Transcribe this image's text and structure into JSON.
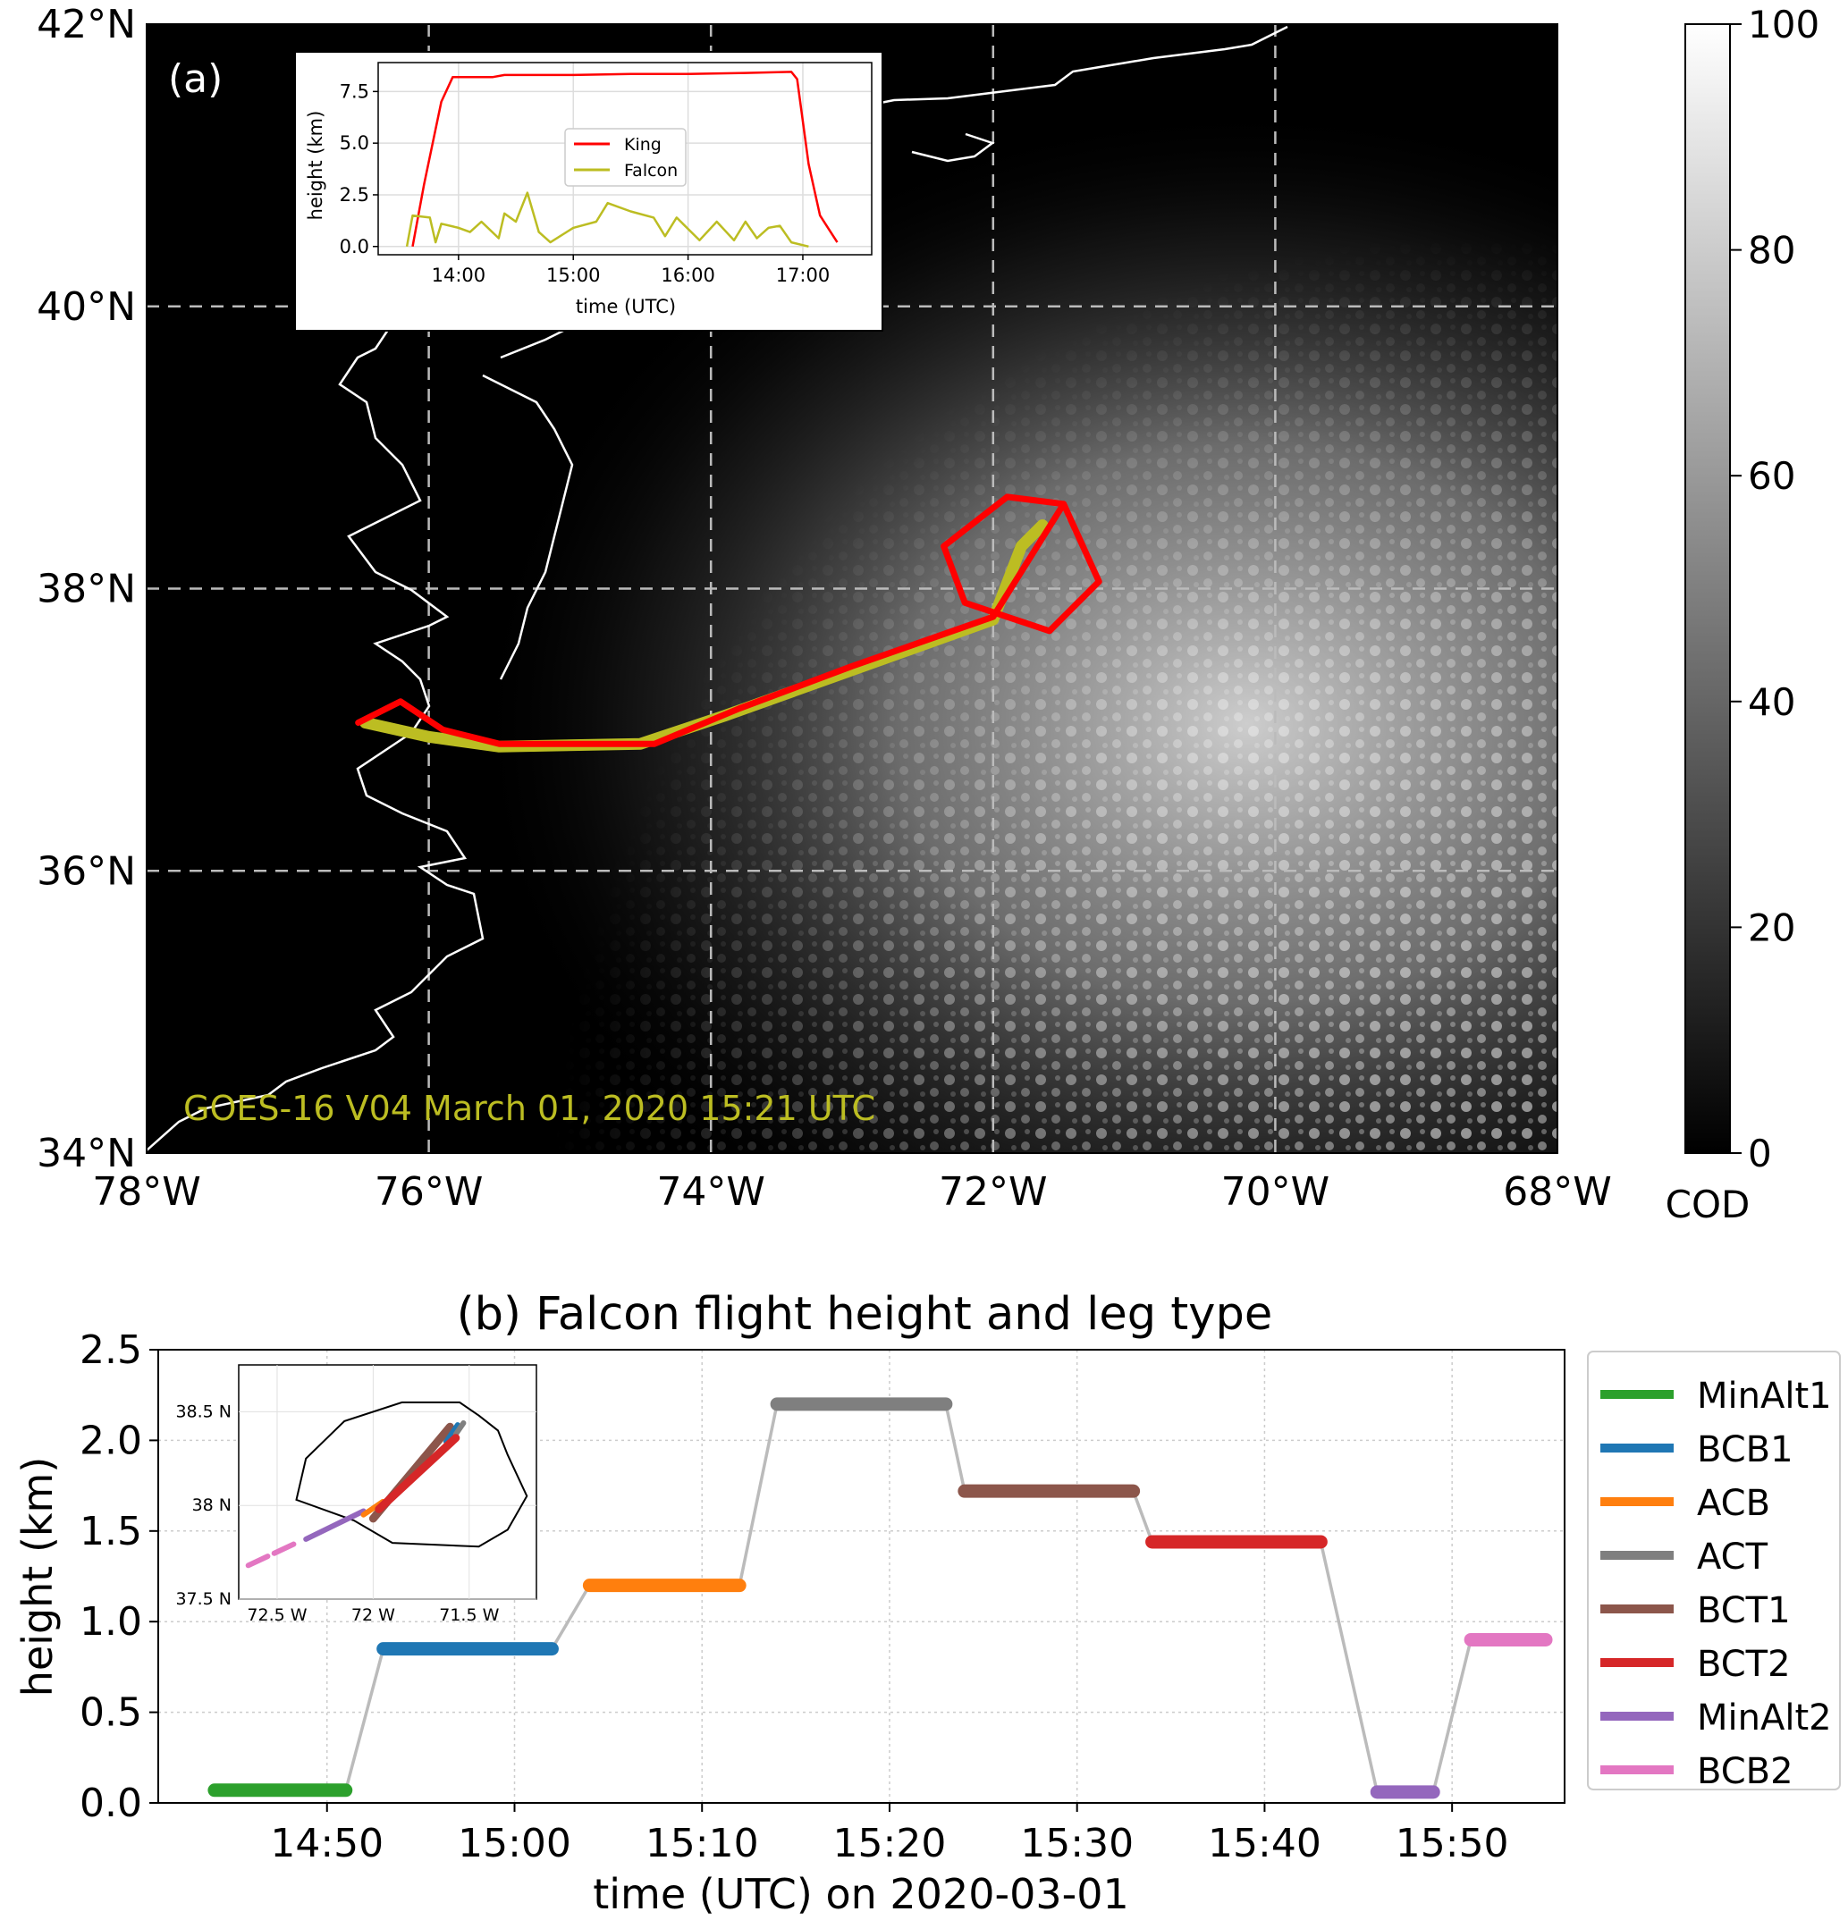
{
  "chart_data": [
    {
      "panel": "(a)",
      "type": "map",
      "xlim": [
        -78,
        -68
      ],
      "ylim": [
        34,
        42
      ],
      "x_ticks": [
        "78°W",
        "76°W",
        "74°W",
        "72°W",
        "70°W",
        "68°W"
      ],
      "y_ticks": [
        "34°N",
        "36°N",
        "38°N",
        "40°N",
        "42°N"
      ],
      "grid": "dashed",
      "annotation": "GOES-16 V04  March 01, 2020 15:21 UTC",
      "colorbar": {
        "label": "COD",
        "range": [
          0,
          100
        ],
        "ticks": [
          "0",
          "20",
          "40",
          "60",
          "80",
          "100"
        ]
      },
      "colors": {
        "King": "#ff0000",
        "Falcon": "#bcbd22",
        "coast": "#ffffff"
      },
      "tracks": {
        "King": [
          [
            -76.5,
            37.05
          ],
          [
            -76.2,
            37.2
          ],
          [
            -75.9,
            37.0
          ],
          [
            -75.5,
            36.9
          ],
          [
            -74.4,
            36.9
          ],
          [
            -73.8,
            37.15
          ],
          [
            -73.0,
            37.45
          ],
          [
            -72.0,
            37.8
          ],
          [
            -71.5,
            38.6
          ],
          [
            -71.25,
            38.05
          ],
          [
            -71.6,
            37.7
          ],
          [
            -72.2,
            37.9
          ],
          [
            -72.35,
            38.3
          ],
          [
            -71.9,
            38.65
          ],
          [
            -71.5,
            38.6
          ]
        ],
        "Falcon": [
          [
            -76.45,
            37.05
          ],
          [
            -76.0,
            36.95
          ],
          [
            -75.5,
            36.88
          ],
          [
            -74.5,
            36.9
          ],
          [
            -73.9,
            37.1
          ],
          [
            -72.0,
            37.78
          ],
          [
            -71.8,
            38.3
          ],
          [
            -71.65,
            38.45
          ]
        ]
      },
      "inset": {
        "type": "line",
        "xlabel": "time (UTC)",
        "ylabel": "height (km)",
        "x_ticks": [
          "14:00",
          "15:00",
          "16:00",
          "17:00"
        ],
        "y_ticks": [
          "0.0",
          "2.5",
          "5.0",
          "7.5"
        ],
        "xlim": [
          13.3,
          17.6
        ],
        "ylim": [
          -0.4,
          8.9
        ],
        "legend": "center",
        "series": [
          {
            "name": "King",
            "color": "#ff0000",
            "points": [
              [
                13.6,
                0
              ],
              [
                13.7,
                3
              ],
              [
                13.85,
                7
              ],
              [
                13.95,
                8.2
              ],
              [
                14.3,
                8.2
              ],
              [
                14.4,
                8.3
              ],
              [
                15.0,
                8.3
              ],
              [
                15.5,
                8.35
              ],
              [
                16.0,
                8.35
              ],
              [
                16.5,
                8.4
              ],
              [
                16.9,
                8.45
              ],
              [
                16.95,
                8.1
              ],
              [
                17.05,
                4
              ],
              [
                17.15,
                1.5
              ],
              [
                17.3,
                0.2
              ]
            ]
          },
          {
            "name": "Falcon",
            "color": "#bcbd22",
            "points": [
              [
                13.55,
                0
              ],
              [
                13.6,
                1.5
              ],
              [
                13.75,
                1.4
              ],
              [
                13.8,
                0.2
              ],
              [
                13.85,
                1.1
              ],
              [
                14.0,
                0.9
              ],
              [
                14.1,
                0.7
              ],
              [
                14.2,
                1.2
              ],
              [
                14.35,
                0.4
              ],
              [
                14.4,
                1.6
              ],
              [
                14.5,
                1.2
              ],
              [
                14.6,
                2.6
              ],
              [
                14.7,
                0.7
              ],
              [
                14.8,
                0.2
              ],
              [
                15.0,
                0.9
              ],
              [
                15.2,
                1.2
              ],
              [
                15.3,
                2.1
              ],
              [
                15.5,
                1.7
              ],
              [
                15.7,
                1.4
              ],
              [
                15.8,
                0.5
              ],
              [
                15.9,
                1.4
              ],
              [
                16.1,
                0.3
              ],
              [
                16.25,
                1.2
              ],
              [
                16.4,
                0.3
              ],
              [
                16.5,
                1.2
              ],
              [
                16.6,
                0.4
              ],
              [
                16.7,
                0.9
              ],
              [
                16.8,
                1.0
              ],
              [
                16.9,
                0.2
              ],
              [
                17.05,
                0
              ]
            ]
          }
        ]
      }
    },
    {
      "panel": "(b)",
      "type": "line",
      "title": "(b) Falcon flight height and leg type",
      "xlabel": "time (UTC) on 2020-03-01",
      "ylabel": "height (km)",
      "x_ticks": [
        "14:50",
        "15:00",
        "15:10",
        "15:20",
        "15:30",
        "15:40",
        "15:50"
      ],
      "y_ticks": [
        "0.0",
        "0.5",
        "1.0",
        "1.5",
        "2.0",
        "2.5"
      ],
      "xlim": [
        "14:41",
        "15:56"
      ],
      "ylim": [
        0,
        2.5
      ],
      "grid": "dotted",
      "legend": "right",
      "transition_color": "#bbbbbb",
      "series": [
        {
          "name": "MinAlt1",
          "color": "#2ca02c",
          "start": "14:44",
          "end": "14:51",
          "height": 0.07
        },
        {
          "name": "BCB1",
          "color": "#1f77b4",
          "start": "14:53",
          "end": "15:02",
          "height": 0.85
        },
        {
          "name": "ACB",
          "color": "#ff7f0e",
          "start": "15:04",
          "end": "15:12",
          "height": 1.2
        },
        {
          "name": "ACT",
          "color": "#7f7f7f",
          "start": "15:14",
          "end": "15:23",
          "height": 2.2
        },
        {
          "name": "BCT1",
          "color": "#8c564b",
          "start": "15:24",
          "end": "15:33",
          "height": 1.72
        },
        {
          "name": "BCT2",
          "color": "#d62728",
          "start": "15:34",
          "end": "15:43",
          "height": 1.44
        },
        {
          "name": "MinAlt2",
          "color": "#9467bd",
          "start": "15:46",
          "end": "15:49",
          "height": 0.06
        },
        {
          "name": "BCB2",
          "color": "#e377c2",
          "start": "15:51",
          "end": "15:55",
          "height": 0.9
        }
      ],
      "inset": {
        "type": "map",
        "x_ticks": [
          "72.5 W",
          "72 W",
          "71.5 W"
        ],
        "y_ticks": [
          "37.5 N",
          "38 N",
          "38.5 N"
        ],
        "xlim": [
          -72.7,
          -71.15
        ],
        "ylim": [
          37.5,
          38.75
        ],
        "tracks": [
          {
            "leg": "MinAlt2",
            "color": "#9467bd",
            "points": [
              [
                -72.35,
                37.82
              ],
              [
                -72.05,
                37.97
              ]
            ]
          },
          {
            "leg": "BCB2",
            "color": "#e377c2",
            "points": [
              [
                -72.65,
                37.68
              ],
              [
                -72.4,
                37.8
              ]
            ]
          },
          {
            "leg": "BCT1",
            "color": "#8c564b",
            "points": [
              [
                -72.0,
                37.93
              ],
              [
                -71.6,
                38.42
              ]
            ]
          },
          {
            "leg": "BCB1",
            "color": "#1f77b4",
            "points": [
              [
                -71.62,
                38.34
              ],
              [
                -71.56,
                38.43
              ]
            ]
          },
          {
            "leg": "ACT",
            "color": "#7f7f7f",
            "points": [
              [
                -71.57,
                38.38
              ],
              [
                -71.53,
                38.44
              ]
            ]
          },
          {
            "leg": "ACB",
            "color": "#ff7f0e",
            "points": [
              [
                -72.05,
                37.95
              ],
              [
                -71.95,
                38.02
              ]
            ]
          },
          {
            "leg": "BCT2",
            "color": "#d62728",
            "points": [
              [
                -71.97,
                37.98
              ],
              [
                -71.57,
                38.36
              ]
            ]
          }
        ],
        "circle": [
          [
            -71.45,
            38.48
          ],
          [
            -71.35,
            38.4
          ],
          [
            -71.3,
            38.27
          ],
          [
            -71.2,
            38.05
          ],
          [
            -71.3,
            37.87
          ],
          [
            -71.45,
            37.78
          ],
          [
            -71.9,
            37.8
          ],
          [
            -72.1,
            37.92
          ],
          [
            -72.4,
            38.03
          ],
          [
            -72.35,
            38.25
          ],
          [
            -72.15,
            38.45
          ],
          [
            -71.85,
            38.55
          ],
          [
            -71.55,
            38.55
          ],
          [
            -71.45,
            38.48
          ]
        ]
      }
    }
  ]
}
